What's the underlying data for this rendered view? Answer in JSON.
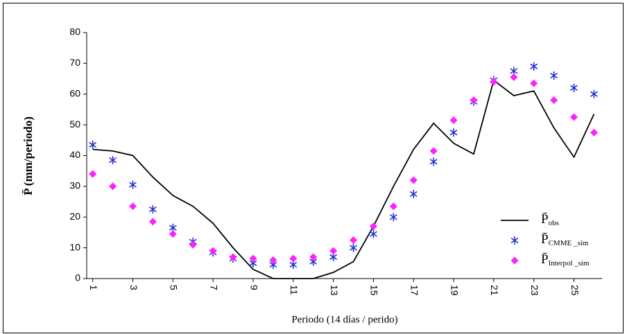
{
  "chart_data": {
    "type": "line",
    "x_label": "Periodo  (14 días / perido)",
    "y_label": "P̄ (mm/periodo)",
    "x": [
      1,
      2,
      3,
      4,
      5,
      6,
      7,
      8,
      9,
      10,
      11,
      12,
      13,
      14,
      15,
      16,
      17,
      18,
      19,
      20,
      21,
      22,
      23,
      24,
      25,
      26
    ],
    "series": [
      {
        "name": "P̄obs",
        "color": "#000000",
        "style": "line",
        "values": [
          42,
          41.5,
          40,
          33,
          27,
          23.5,
          18,
          10,
          3,
          0,
          0,
          0,
          2,
          5.5,
          17,
          30,
          42,
          50.5,
          44,
          40.5,
          64.5,
          59.5,
          61,
          49,
          39.5,
          53.5
        ]
      },
      {
        "name": "P̄CMME _sim",
        "color": "#1f2fd0",
        "style": "asterisk",
        "values": [
          43.5,
          38.5,
          30.5,
          22.5,
          16.5,
          12,
          8.5,
          6.5,
          5,
          4.5,
          4.5,
          5.5,
          7,
          10,
          14.5,
          20,
          27.5,
          38,
          47.5,
          57.5,
          64.5,
          67.5,
          69,
          66,
          62,
          60
        ]
      },
      {
        "name": "P̄Interpol _sim",
        "color": "#ff20ff",
        "style": "diamond",
        "values": [
          34,
          30,
          23.5,
          18.5,
          14.5,
          11,
          9,
          7,
          6.5,
          6,
          6.5,
          7,
          9,
          12.5,
          17,
          23.5,
          32,
          41.5,
          51.5,
          58,
          64,
          65.5,
          63.5,
          58,
          52.5,
          47.5
        ]
      }
    ],
    "xlim": [
      0.7,
      26.4
    ],
    "xticks": [
      1,
      3,
      5,
      7,
      9,
      11,
      13,
      15,
      17,
      19,
      21,
      23,
      25
    ],
    "ylim": [
      0,
      80
    ],
    "yticks": [
      0,
      10,
      20,
      30,
      40,
      50,
      60,
      70,
      80
    ],
    "legend": "lower right"
  }
}
